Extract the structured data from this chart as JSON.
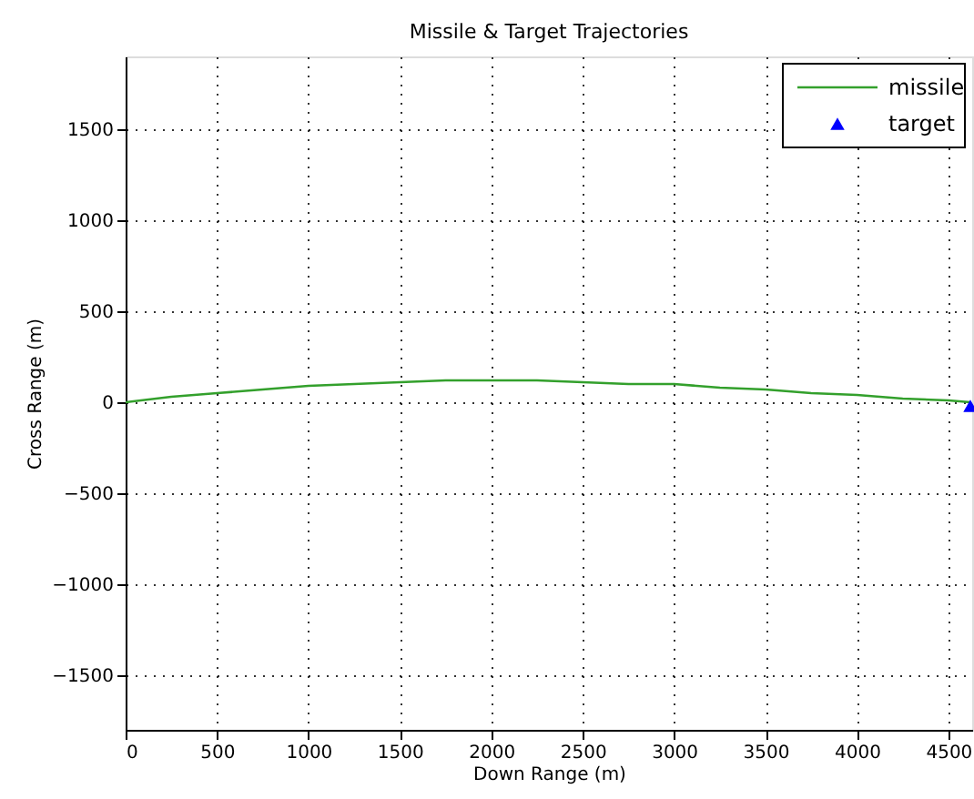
{
  "chart_data": {
    "type": "line",
    "title": "Missile & Target Trajectories",
    "xlabel": "Down Range (m)",
    "ylabel": "Cross Range (m)",
    "xlim": [
      0,
      4630
    ],
    "ylim": [
      -1800,
      1900
    ],
    "xticks": [
      0,
      500,
      1000,
      1500,
      2000,
      2500,
      3000,
      3500,
      4000,
      4500
    ],
    "yticks": [
      -1500,
      -1000,
      -500,
      0,
      500,
      1000,
      1500
    ],
    "grid": true,
    "legend": "top right",
    "series": [
      {
        "name": "missile",
        "color": "#33a02c",
        "x": [
          0,
          250,
          500,
          750,
          1000,
          1250,
          1500,
          1750,
          2000,
          2250,
          2500,
          2750,
          3000,
          3250,
          3500,
          3750,
          4000,
          4250,
          4500,
          4620
        ],
        "values": [
          0,
          30,
          50,
          70,
          90,
          100,
          110,
          120,
          120,
          120,
          110,
          100,
          100,
          80,
          70,
          50,
          40,
          20,
          10,
          0
        ]
      },
      {
        "name": "target",
        "type": "scatter",
        "color": "#0000ff",
        "marker": "triangle",
        "x": [
          4620
        ],
        "values": [
          -20
        ]
      }
    ]
  }
}
